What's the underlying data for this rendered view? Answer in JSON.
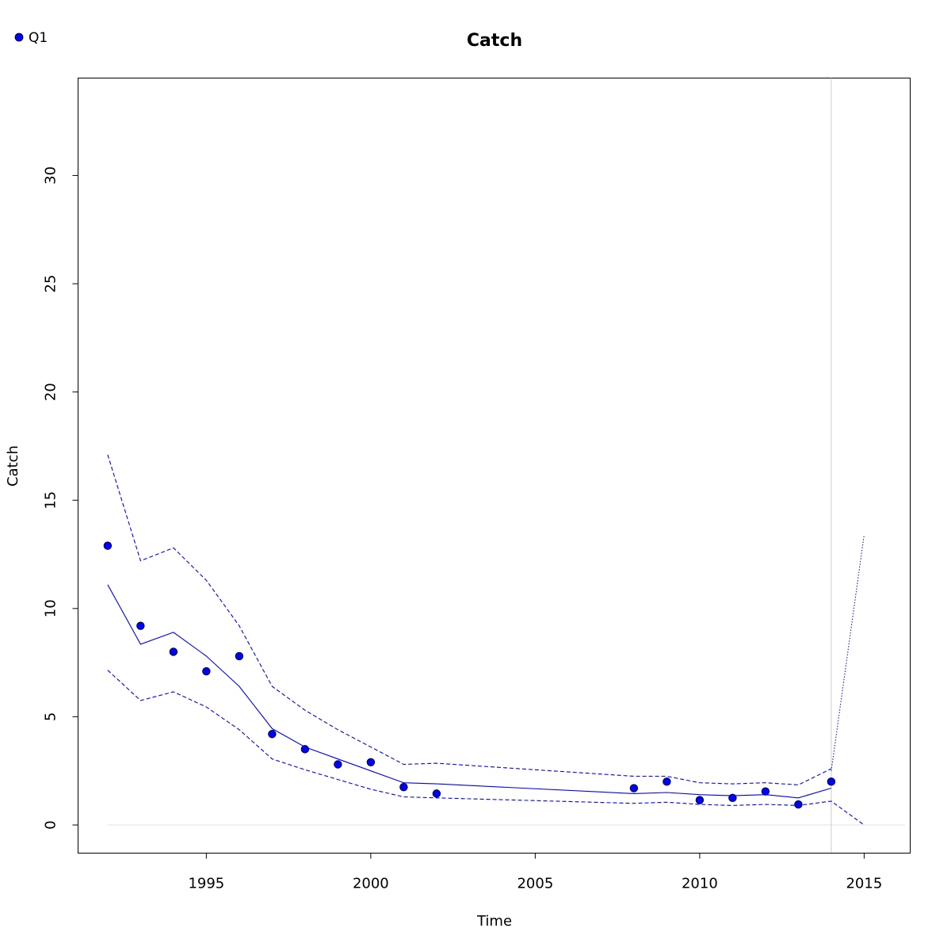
{
  "chart_data": {
    "type": "line",
    "title": "Catch",
    "xlabel": "Time",
    "ylabel": "Catch",
    "xlim": [
      1991.1,
      2016.4
    ],
    "ylim": [
      -1.3,
      34.5
    ],
    "x_ticks": [
      1995,
      2000,
      2005,
      2010,
      2015
    ],
    "y_ticks": [
      0,
      5,
      10,
      15,
      20,
      25,
      30
    ],
    "grid": false,
    "legend": {
      "position": "top-left",
      "entries": [
        "Q1"
      ]
    },
    "colors": {
      "series": "#0000ff",
      "reference": "#cccccc",
      "frame": "#000000"
    },
    "series": [
      {
        "name": "Q1",
        "style": "points",
        "x": [
          1992,
          1993,
          1994,
          1995,
          1996,
          1997,
          1998,
          1999,
          2000,
          2001,
          2002,
          2008,
          2009,
          2010,
          2011,
          2012,
          2013,
          2014
        ],
        "values": [
          12.9,
          9.2,
          8.0,
          7.1,
          7.8,
          4.2,
          3.5,
          2.8,
          2.9,
          1.75,
          1.45,
          1.7,
          2.0,
          1.15,
          1.25,
          1.55,
          0.95,
          2.0
        ]
      },
      {
        "style": "solid-line",
        "x": [
          1992,
          1993,
          1994,
          1995,
          1996,
          1997,
          1998,
          1999,
          2000,
          2001,
          2002,
          2008,
          2009,
          2010,
          2011,
          2012,
          2013,
          2014
        ],
        "values": [
          11.1,
          8.35,
          8.9,
          7.8,
          6.4,
          4.45,
          3.6,
          3.05,
          2.5,
          1.95,
          1.9,
          1.45,
          1.5,
          1.4,
          1.35,
          1.4,
          1.25,
          1.7
        ]
      },
      {
        "style": "dashed-upper",
        "x": [
          1992,
          1993,
          1994,
          1995,
          1996,
          1997,
          1998,
          1999,
          2000,
          2001,
          2002,
          2008,
          2009,
          2010,
          2011,
          2012,
          2013,
          2014
        ],
        "values": [
          17.1,
          12.2,
          12.8,
          11.3,
          9.2,
          6.4,
          5.3,
          4.4,
          3.6,
          2.8,
          2.85,
          2.25,
          2.25,
          1.95,
          1.9,
          1.95,
          1.85,
          2.6
        ]
      },
      {
        "style": "dashed-lower",
        "x": [
          1992,
          1993,
          1994,
          1995,
          1996,
          1997,
          1998,
          1999,
          2000,
          2001,
          2002,
          2008,
          2009,
          2010,
          2011,
          2012,
          2013,
          2014,
          2015
        ],
        "values": [
          7.15,
          5.75,
          6.15,
          5.45,
          4.4,
          3.05,
          2.55,
          2.1,
          1.65,
          1.3,
          1.25,
          1.0,
          1.05,
          0.95,
          0.9,
          0.95,
          0.9,
          1.1,
          0.0
        ]
      },
      {
        "style": "dotted-projection",
        "x": [
          2014,
          2015
        ],
        "values": [
          2.5,
          13.4
        ]
      }
    ],
    "reference_lines": {
      "horizontal": {
        "y": 0,
        "x_from": 1992,
        "x_to": 2016.25
      },
      "vertical": {
        "x": 2014
      }
    }
  }
}
